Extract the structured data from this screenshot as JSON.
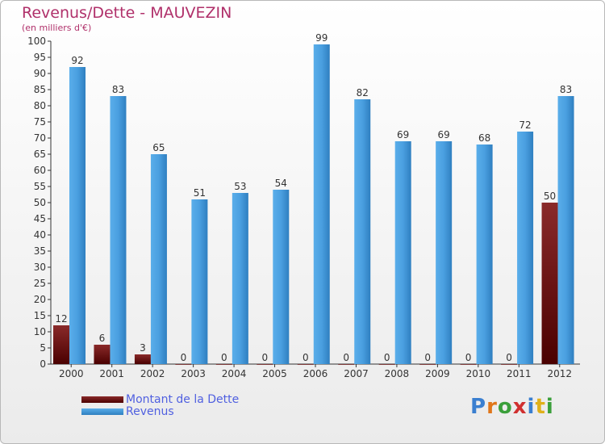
{
  "chart_data": {
    "type": "bar",
    "title": "Revenus/Dette - MAUVEZIN",
    "subtitle": "(en milliers d'€)",
    "categories": [
      "2000",
      "2001",
      "2002",
      "2003",
      "2004",
      "2005",
      "2006",
      "2007",
      "2008",
      "2009",
      "2010",
      "2011",
      "2012"
    ],
    "series": [
      {
        "name": "Montant de la Dette",
        "color": "#7a1010",
        "values": [
          12,
          6,
          3,
          0,
          0,
          0,
          0,
          0,
          0,
          0,
          0,
          0,
          50
        ]
      },
      {
        "name": "Revenus",
        "color": "#4a9fe0",
        "values": [
          92,
          83,
          65,
          51,
          53,
          54,
          99,
          82,
          69,
          69,
          68,
          72,
          83
        ]
      }
    ],
    "ylim": [
      0,
      100
    ],
    "yticks": [
      0,
      5,
      10,
      15,
      20,
      25,
      30,
      35,
      40,
      45,
      50,
      55,
      60,
      65,
      70,
      75,
      80,
      85,
      90,
      95,
      100
    ],
    "grid": false,
    "legend": "bottom-left"
  },
  "logo": {
    "letters": [
      {
        "ch": "P",
        "color": "#3a7fd0"
      },
      {
        "ch": "r",
        "color": "#e0761a"
      },
      {
        "ch": "o",
        "color": "#3a9f3a"
      },
      {
        "ch": "x",
        "color": "#d03030"
      },
      {
        "ch": "i",
        "color": "#3a7fd0"
      },
      {
        "ch": "t",
        "color": "#e0b01a"
      },
      {
        "ch": "i",
        "color": "#3a9f3a"
      }
    ]
  }
}
